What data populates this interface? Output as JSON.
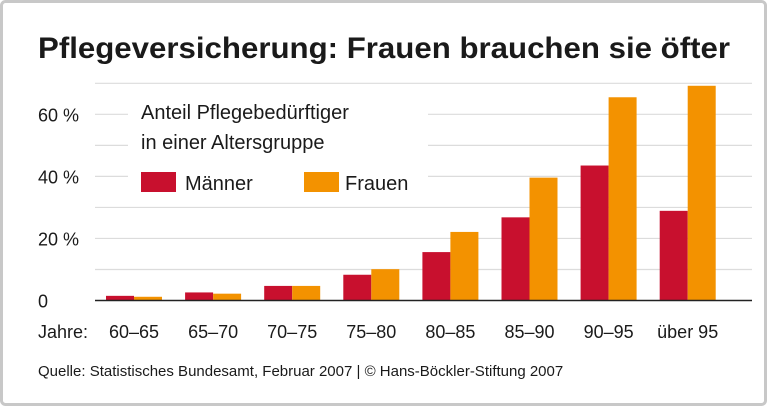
{
  "chart_data": {
    "type": "bar",
    "title": "Pflegeversicherung: Frauen brauchen sie öfter",
    "legend_title": [
      "Anteil Pflegebedürftiger",
      "in einer Altersgruppe"
    ],
    "legend_placement": "top-left",
    "xlabel": "Jahre:",
    "ylabel": "",
    "categories": [
      "60–65",
      "65–70",
      "70–75",
      "75–80",
      "80–85",
      "85–90",
      "90–95",
      "über 95"
    ],
    "series": [
      {
        "name": "Männer",
        "color": "#c8102e",
        "values": [
          1.5,
          2.6,
          4.7,
          8.3,
          15.6,
          26.8,
          43.5,
          28.9
        ]
      },
      {
        "name": "Frauen",
        "color": "#f39200",
        "values": [
          1.2,
          2.2,
          4.7,
          10.1,
          22.1,
          39.6,
          65.5,
          69.2
        ]
      }
    ],
    "yticks": [
      {
        "value": 0,
        "label": "0"
      },
      {
        "value": 20,
        "label": "20 %"
      },
      {
        "value": 40,
        "label": "40 %"
      },
      {
        "value": 60,
        "label": "60 %"
      }
    ],
    "ylim": [
      0,
      70
    ],
    "grid": true,
    "source": "Quelle: Statistisches Bundesamt, Februar 2007 | © Hans-Böckler-Stiftung 2007"
  }
}
